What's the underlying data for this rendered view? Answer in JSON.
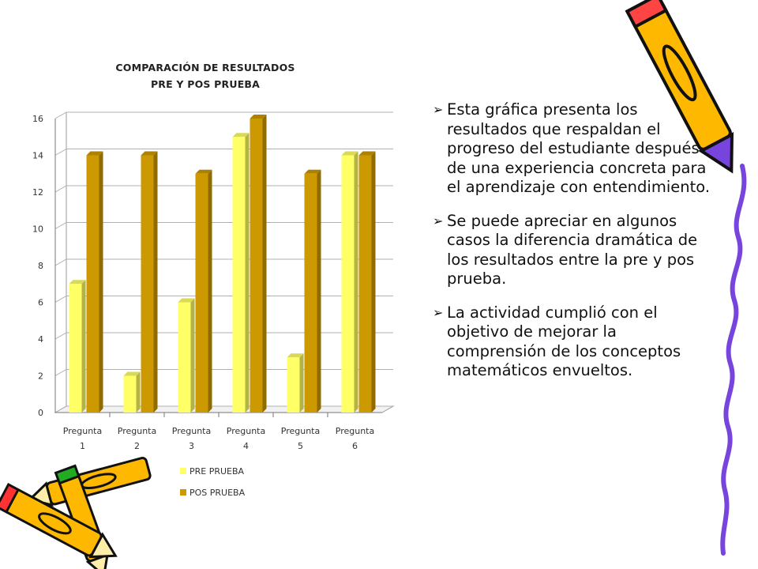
{
  "chart_data": {
    "type": "bar",
    "title_line1": "COMPARACIÓN DE RESULTADOS",
    "title_line2": "PRE Y POS PRUEBA",
    "categories": [
      [
        "Pregunta",
        "1"
      ],
      [
        "Pregunta",
        "2"
      ],
      [
        "Pregunta",
        "3"
      ],
      [
        "Pregunta",
        "4"
      ],
      [
        "Pregunta",
        "5"
      ],
      [
        "Pregunta",
        "6"
      ]
    ],
    "series": [
      {
        "name": "PRE PRUEBA",
        "values": [
          7,
          2,
          6,
          15,
          3,
          14
        ],
        "color": "#ffff66"
      },
      {
        "name": "POS PRUEBA",
        "values": [
          14,
          14,
          13,
          16,
          13,
          14
        ],
        "color": "#cc9900"
      }
    ],
    "yticks": [
      "0",
      "2",
      "4",
      "6",
      "8",
      "10",
      "12",
      "14",
      "16"
    ],
    "ylim": [
      0,
      16
    ],
    "grid": true,
    "legend_position": "bottom"
  },
  "bullets": [
    "Esta gráfica presenta los resultados que respaldan el progreso del estudiante después de una experiencia concreta para el aprendizaje con entendimiento.",
    "Se puede apreciar en algunos casos la diferencia dramática de los resultados entre la pre y pos prueba.",
    "La actividad cumplió con el objetivo de mejorar la comprensión de los conceptos matemáticos envueltos."
  ],
  "bullet_glyph": "➢",
  "decorations": {
    "pencil_top_right": "pencil-icon",
    "pencils_bottom_left": "pencils-icon",
    "border_right": "squiggle-border"
  }
}
